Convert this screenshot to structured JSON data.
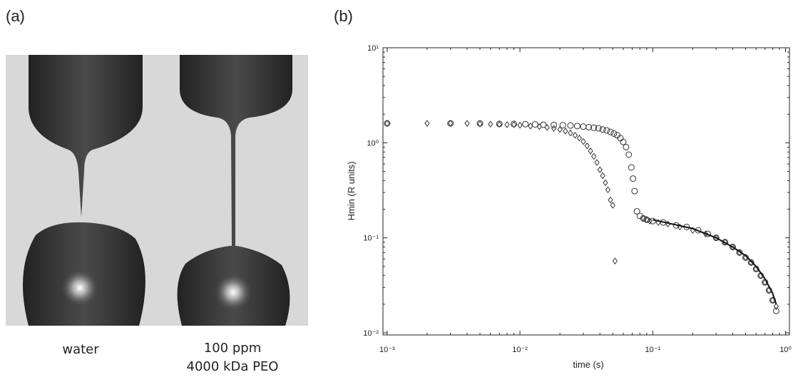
{
  "panel_a": {
    "label": "(a)",
    "captions": [
      "water",
      "100 ppm",
      "4000 kDa PEO"
    ]
  },
  "panel_b": {
    "label": "(b)"
  },
  "chart_data": {
    "type": "scatter",
    "x_label": "time (s)",
    "y_label": "Hmin (R units)",
    "x_log": true,
    "y_log": true,
    "xlim": [
      0.00093,
      1.07
    ],
    "ylim": [
      0.0095,
      10
    ],
    "xticks": [
      {
        "value": 0.001,
        "label": "10⁻³"
      },
      {
        "value": 0.01,
        "label": "10⁻²"
      },
      {
        "value": 0.1,
        "label": "10⁻¹"
      },
      {
        "value": 1,
        "label": "10⁰"
      }
    ],
    "yticks": [
      {
        "value": 0.01,
        "label": "10⁻²"
      },
      {
        "value": 0.1,
        "label": "10⁻¹"
      },
      {
        "value": 1,
        "label": "10⁰"
      },
      {
        "value": 10,
        "label": "10¹"
      }
    ],
    "series": [
      {
        "marker": "circle",
        "color": "#333333",
        "x": [
          0.001,
          0.003,
          0.005,
          0.007,
          0.009,
          0.011,
          0.013,
          0.015,
          0.018,
          0.021,
          0.024,
          0.027,
          0.03,
          0.033,
          0.036,
          0.039,
          0.042,
          0.045,
          0.048,
          0.051,
          0.054,
          0.057,
          0.06,
          0.063,
          0.066,
          0.069,
          0.071,
          0.073,
          0.076,
          0.08,
          0.085,
          0.09,
          0.1,
          0.12,
          0.15,
          0.18,
          0.22,
          0.26,
          0.3,
          0.35,
          0.4,
          0.45,
          0.5,
          0.55,
          0.6,
          0.65,
          0.7,
          0.75,
          0.8,
          0.85
        ],
        "values": [
          1.6,
          1.6,
          1.6,
          1.58,
          1.58,
          1.57,
          1.56,
          1.55,
          1.54,
          1.53,
          1.52,
          1.5,
          1.48,
          1.46,
          1.44,
          1.42,
          1.38,
          1.35,
          1.3,
          1.25,
          1.2,
          1.12,
          1.02,
          0.9,
          0.75,
          0.55,
          0.42,
          0.31,
          0.19,
          0.17,
          0.16,
          0.155,
          0.15,
          0.145,
          0.135,
          0.13,
          0.12,
          0.11,
          0.1,
          0.09,
          0.08,
          0.07,
          0.062,
          0.055,
          0.047,
          0.04,
          0.034,
          0.028,
          0.022,
          0.017
        ]
      },
      {
        "marker": "diamond",
        "color": "#333333",
        "x": [
          0.001,
          0.002,
          0.003,
          0.004,
          0.005,
          0.006,
          0.007,
          0.008,
          0.009,
          0.01,
          0.012,
          0.014,
          0.016,
          0.018,
          0.02,
          0.022,
          0.024,
          0.026,
          0.028,
          0.03,
          0.032,
          0.034,
          0.036,
          0.038,
          0.04,
          0.042,
          0.044,
          0.046,
          0.048,
          0.05,
          0.052,
          0.085,
          0.09,
          0.095,
          0.11,
          0.13,
          0.16,
          0.2,
          0.25,
          0.3,
          0.35,
          0.4,
          0.45,
          0.5,
          0.55,
          0.6,
          0.65,
          0.7,
          0.75,
          0.8,
          0.85
        ],
        "values": [
          1.6,
          1.6,
          1.6,
          1.6,
          1.58,
          1.57,
          1.56,
          1.55,
          1.55,
          1.53,
          1.5,
          1.48,
          1.45,
          1.42,
          1.38,
          1.33,
          1.27,
          1.2,
          1.12,
          1.03,
          0.93,
          0.82,
          0.72,
          0.62,
          0.52,
          0.45,
          0.38,
          0.32,
          0.25,
          0.22,
          0.057,
          0.16,
          0.155,
          0.15,
          0.145,
          0.14,
          0.13,
          0.12,
          0.11,
          0.1,
          0.09,
          0.08,
          0.07,
          0.062,
          0.055,
          0.047,
          0.04,
          0.034,
          0.028,
          0.022,
          0.019
        ]
      },
      {
        "marker": "line",
        "color": "#111111",
        "x": [
          0.1,
          0.2,
          0.3,
          0.4,
          0.5,
          0.6,
          0.7,
          0.8,
          0.85
        ],
        "values": [
          0.155,
          0.125,
          0.1,
          0.08,
          0.065,
          0.05,
          0.037,
          0.026,
          0.02
        ]
      }
    ]
  }
}
